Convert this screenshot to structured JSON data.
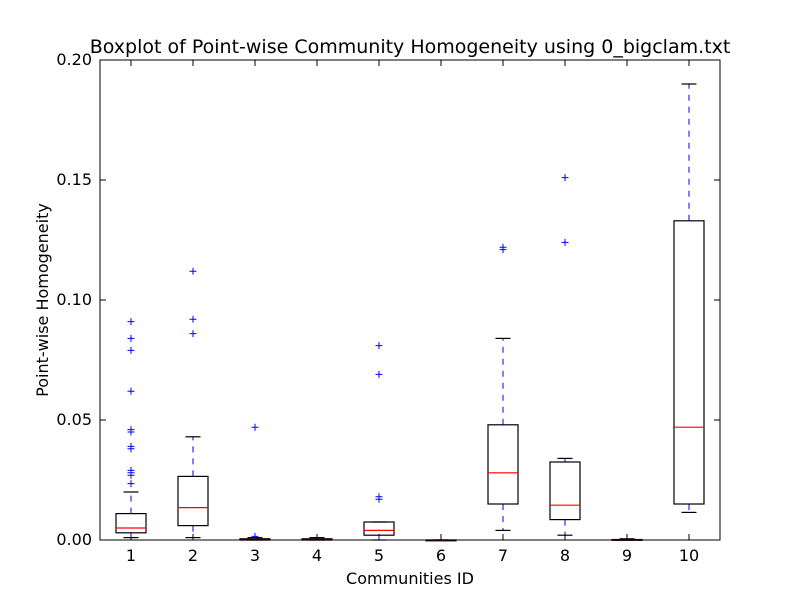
{
  "chart_data": {
    "type": "boxplot",
    "title": "Boxplot of Point-wise Community Homogeneity using 0_bigclam.txt",
    "xlabel": "Communities ID",
    "ylabel": "Point-wise Homogeneity",
    "ylim": [
      0.0,
      0.2
    ],
    "yticks": [
      "0.00",
      "0.05",
      "0.10",
      "0.15",
      "0.20"
    ],
    "grid": false,
    "colors": {
      "box": "#000000",
      "median": "#ff0000",
      "whisker": "#0000ff",
      "flier": "#0000ff"
    },
    "boxes": [
      {
        "label": "1",
        "whislo": 0.001,
        "q1": 0.003,
        "med": 0.005,
        "q3": 0.011,
        "whishi": 0.02,
        "fliers": [
          0.0235,
          0.027,
          0.028,
          0.029,
          0.038,
          0.039,
          0.045,
          0.046,
          0.062,
          0.079,
          0.084,
          0.091
        ]
      },
      {
        "label": "2",
        "whislo": 0.001,
        "q1": 0.006,
        "med": 0.0135,
        "q3": 0.0265,
        "whishi": 0.043,
        "fliers": [
          0.086,
          0.092,
          0.112
        ]
      },
      {
        "label": "3",
        "whislo": 0.0,
        "q1": 0.0,
        "med": 0.0,
        "q3": 0.0005,
        "whishi": 0.001,
        "fliers": [
          0.0015,
          0.047
        ]
      },
      {
        "label": "4",
        "whislo": 0.0,
        "q1": 0.0,
        "med": 0.0,
        "q3": 0.0005,
        "whishi": 0.001,
        "fliers": []
      },
      {
        "label": "5",
        "whislo": 0.0,
        "q1": 0.002,
        "med": 0.004,
        "q3": 0.0075,
        "whishi": 0.0075,
        "fliers": [
          0.017,
          0.018,
          0.069,
          0.081
        ]
      },
      {
        "label": "6",
        "whislo": 0.0,
        "q1": 0.0,
        "med": 0.0,
        "q3": 0.0,
        "whishi": 0.0,
        "fliers": []
      },
      {
        "label": "7",
        "whislo": 0.004,
        "q1": 0.015,
        "med": 0.028,
        "q3": 0.048,
        "whishi": 0.084,
        "fliers": [
          0.121,
          0.122
        ]
      },
      {
        "label": "8",
        "whislo": 0.002,
        "q1": 0.0085,
        "med": 0.0145,
        "q3": 0.0325,
        "whishi": 0.034,
        "fliers": [
          0.124,
          0.151
        ]
      },
      {
        "label": "9",
        "whislo": 0.0,
        "q1": 0.0,
        "med": 0.0,
        "q3": 0.0002,
        "whishi": 0.0005,
        "fliers": []
      },
      {
        "label": "10",
        "whislo": 0.0115,
        "q1": 0.015,
        "med": 0.047,
        "q3": 0.133,
        "whishi": 0.19,
        "fliers": []
      }
    ]
  }
}
